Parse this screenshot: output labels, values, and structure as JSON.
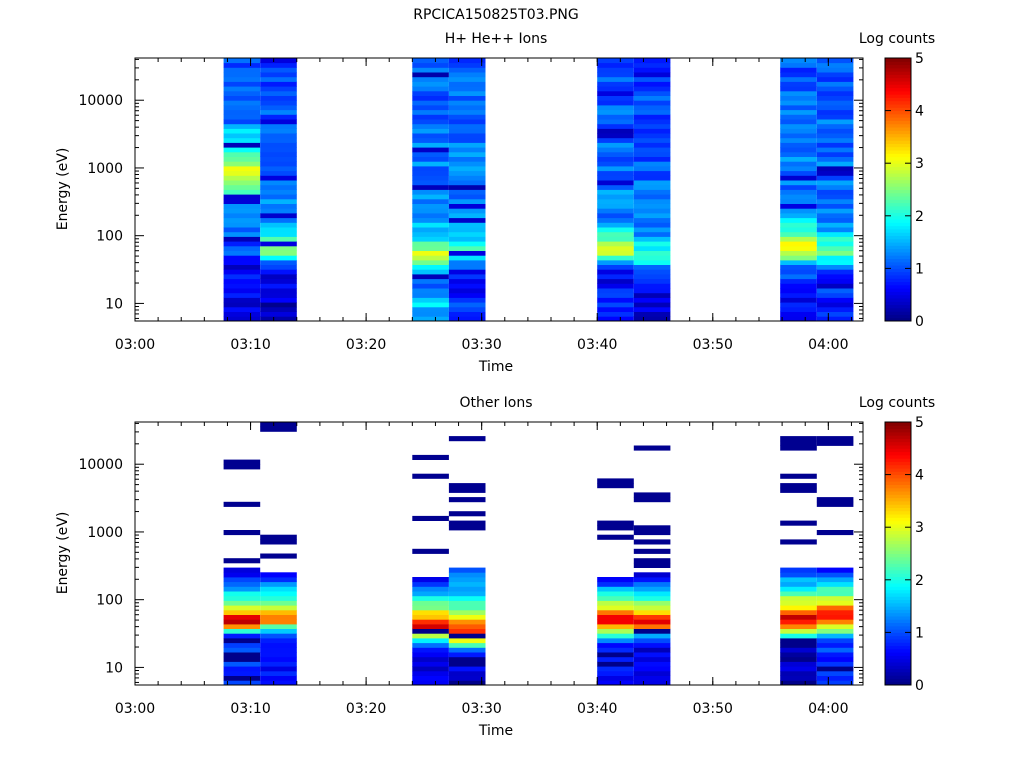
{
  "page_title": "RPCICA150825T03.PNG",
  "panels": [
    {
      "title": "H+ He++ Ions",
      "xlabel": "Time",
      "ylabel": "Energy (eV)",
      "colorbar_label": "Log counts"
    },
    {
      "title": "Other Ions",
      "xlabel": "Time",
      "ylabel": "Energy (eV)",
      "colorbar_label": "Log counts"
    }
  ],
  "chart_data": [
    {
      "type": "heatmap",
      "title": "H+ He++ Ions",
      "xlabel": "Time",
      "ylabel": "Energy (eV)",
      "x_ticks": [
        "03:00",
        "03:10",
        "03:20",
        "03:30",
        "03:40",
        "03:50",
        "04:00"
      ],
      "xlim": [
        "03:00",
        "04:03"
      ],
      "y_ticks": [
        10,
        100,
        1000,
        10000
      ],
      "y_scale": "log",
      "ylim": [
        5.5,
        42000
      ],
      "colorbar": {
        "label": "Log counts",
        "ticks": [
          0,
          1,
          2,
          3,
          4,
          5
        ],
        "range": [
          0,
          5
        ],
        "colormap": "jet"
      },
      "blocks": [
        {
          "start": "03:07:40",
          "end": "03:10:50",
          "profile": [
            [
              1,
              0.55
            ],
            [
              1.4,
              0.75
            ],
            [
              2.4,
              1.35
            ],
            [
              2.9,
              3.2
            ],
            [
              3.25,
              2.2
            ],
            [
              3.7,
              1.2
            ],
            [
              4.6,
              1.05
            ]
          ]
        },
        {
          "start": "03:10:50",
          "end": "03:14:00",
          "profile": [
            [
              1,
              0.35
            ],
            [
              1.4,
              0.5
            ],
            [
              1.6,
              1.0
            ],
            [
              1.7,
              2.2
            ],
            [
              1.8,
              2.55
            ],
            [
              2.3,
              1.25
            ],
            [
              4.6,
              1.0
            ]
          ]
        },
        {
          "start": "03:24:00",
          "end": "03:27:10",
          "profile": [
            [
              1,
              1.6
            ],
            [
              1.3,
              0.95
            ],
            [
              1.6,
              2.2
            ],
            [
              1.75,
              3.0
            ],
            [
              1.9,
              2.0
            ],
            [
              2.4,
              1.3
            ],
            [
              4.6,
              1.05
            ]
          ]
        },
        {
          "start": "03:27:10",
          "end": "03:30:20",
          "profile": [
            [
              1,
              0.85
            ],
            [
              1.5,
              0.65
            ],
            [
              1.7,
              2.1
            ],
            [
              1.85,
              2.0
            ],
            [
              2.2,
              1.25
            ],
            [
              4.6,
              1.1
            ]
          ]
        },
        {
          "start": "03:40:00",
          "end": "03:43:10",
          "profile": [
            [
              1,
              0.75
            ],
            [
              1.5,
              0.55
            ],
            [
              1.65,
              1.7
            ],
            [
              1.75,
              3.1
            ],
            [
              2.2,
              1.3
            ],
            [
              4.6,
              0.95
            ]
          ]
        },
        {
          "start": "03:43:10",
          "end": "03:46:20",
          "profile": [
            [
              1,
              0.45
            ],
            [
              1.45,
              0.7
            ],
            [
              1.65,
              2.3
            ],
            [
              1.75,
              2.1
            ],
            [
              2.1,
              1.2
            ],
            [
              4.6,
              0.9
            ]
          ]
        },
        {
          "start": "03:55:50",
          "end": "03:59:00",
          "profile": [
            [
              1,
              0.65
            ],
            [
              1.55,
              1.0
            ],
            [
              1.7,
              2.7
            ],
            [
              1.8,
              3.3
            ],
            [
              2.3,
              1.3
            ],
            [
              4.6,
              1.0
            ]
          ]
        },
        {
          "start": "03:59:00",
          "end": "04:02:10",
          "profile": [
            [
              1,
              0.85
            ],
            [
              1.5,
              0.9
            ],
            [
              1.65,
              2.0
            ],
            [
              1.8,
              2.3
            ],
            [
              2.2,
              1.3
            ],
            [
              4.6,
              1.0
            ]
          ]
        }
      ]
    },
    {
      "type": "heatmap",
      "title": "Other Ions",
      "xlabel": "Time",
      "ylabel": "Energy (eV)",
      "x_ticks": [
        "03:00",
        "03:10",
        "03:20",
        "03:30",
        "03:40",
        "03:50",
        "04:00"
      ],
      "xlim": [
        "03:00",
        "04:03"
      ],
      "y_ticks": [
        10,
        100,
        1000,
        10000
      ],
      "y_scale": "log",
      "ylim": [
        5.5,
        42000
      ],
      "colorbar": {
        "label": "Log counts",
        "ticks": [
          0,
          1,
          2,
          3,
          4,
          5
        ],
        "range": [
          0,
          5
        ],
        "colormap": "jet"
      },
      "blocks": [
        {
          "start": "03:07:40",
          "end": "03:10:50",
          "dense_top": 2.45,
          "profile": [
            [
              0.74,
              0.9
            ],
            [
              1.5,
              0.9
            ],
            [
              1.55,
              2.8
            ],
            [
              1.7,
              4.8
            ],
            [
              1.8,
              3.7
            ],
            [
              2.0,
              2.2
            ],
            [
              2.4,
              0.4
            ]
          ],
          "lines": [
            2.6,
            3.0,
            3.4,
            4.0,
            4.02
          ]
        },
        {
          "start": "03:10:50",
          "end": "03:14:00",
          "dense_top": 2.38,
          "profile": [
            [
              0.74,
              0.6
            ],
            [
              1.5,
              0.9
            ],
            [
              1.6,
              2.4
            ],
            [
              1.7,
              4.3
            ],
            [
              1.85,
              3.2
            ],
            [
              2.1,
              1.8
            ],
            [
              2.38,
              0.5
            ]
          ],
          "lines": [
            2.65,
            2.85,
            2.95,
            4.56
          ]
        },
        {
          "start": "03:24:00",
          "end": "03:27:10",
          "dense_top": 2.35,
          "profile": [
            [
              0.74,
              0.5
            ],
            [
              1.3,
              0.6
            ],
            [
              1.4,
              1.9
            ],
            [
              1.6,
              4.7
            ],
            [
              1.75,
              3.5
            ],
            [
              2.0,
              1.9
            ],
            [
              2.35,
              0.5
            ]
          ],
          "lines": [
            2.7,
            3.2,
            3.8,
            4.08
          ]
        },
        {
          "start": "03:27:10",
          "end": "03:30:20",
          "dense_top": 2.5,
          "profile": [
            [
              0.74,
              0.7
            ],
            [
              1.15,
              0.3
            ],
            [
              1.25,
              1.2
            ],
            [
              1.5,
              4.4
            ],
            [
              1.7,
              3.3
            ],
            [
              2.0,
              1.9
            ],
            [
              2.5,
              0.8
            ]
          ],
          "lines": [
            3.05,
            3.15,
            3.25,
            3.5,
            3.65,
            4.38
          ]
        },
        {
          "start": "03:40:00",
          "end": "03:43:10",
          "dense_top": 2.33,
          "profile": [
            [
              0.74,
              0.5
            ],
            [
              1.35,
              0.8
            ],
            [
              1.5,
              2.4
            ],
            [
              1.7,
              4.8
            ],
            [
              1.85,
              3.4
            ],
            [
              2.1,
              1.8
            ],
            [
              2.33,
              0.4
            ]
          ],
          "lines": [
            2.9,
            2.95,
            3.1,
            3.72
          ]
        },
        {
          "start": "03:43:10",
          "end": "03:46:20",
          "dense_top": 2.4,
          "profile": [
            [
              0.74,
              0.4
            ],
            [
              1.35,
              0.5
            ],
            [
              1.5,
              2.0
            ],
            [
              1.65,
              4.6
            ],
            [
              1.85,
              3.3
            ],
            [
              2.1,
              1.7
            ],
            [
              2.4,
              0.4
            ]
          ],
          "lines": [
            2.55,
            2.7,
            2.85,
            3.0,
            3.05,
            3.5,
            3.55,
            4.22
          ]
        },
        {
          "start": "03:55:50",
          "end": "03:59:00",
          "dense_top": 2.5,
          "profile": [
            [
              0.74,
              0.6
            ],
            [
              1.05,
              0.3
            ],
            [
              1.3,
              0.4
            ],
            [
              1.5,
              2.2
            ],
            [
              1.7,
              4.8
            ],
            [
              1.9,
              3.3
            ],
            [
              2.2,
              1.8
            ],
            [
              2.5,
              0.5
            ]
          ],
          "lines": [
            2.85,
            3.12,
            3.65,
            3.85,
            4.25,
            4.32,
            4.38
          ]
        },
        {
          "start": "03:59:00",
          "end": "04:02:10",
          "dense_top": 2.45,
          "profile": [
            [
              0.74,
              0.8
            ],
            [
              1.4,
              0.9
            ],
            [
              1.55,
              2.6
            ],
            [
              1.75,
              4.5
            ],
            [
              1.95,
              3.2
            ],
            [
              2.2,
              1.9
            ],
            [
              2.45,
              0.6
            ]
          ],
          "lines": [
            3.0,
            3.45,
            4.3,
            4.35
          ]
        }
      ]
    }
  ]
}
